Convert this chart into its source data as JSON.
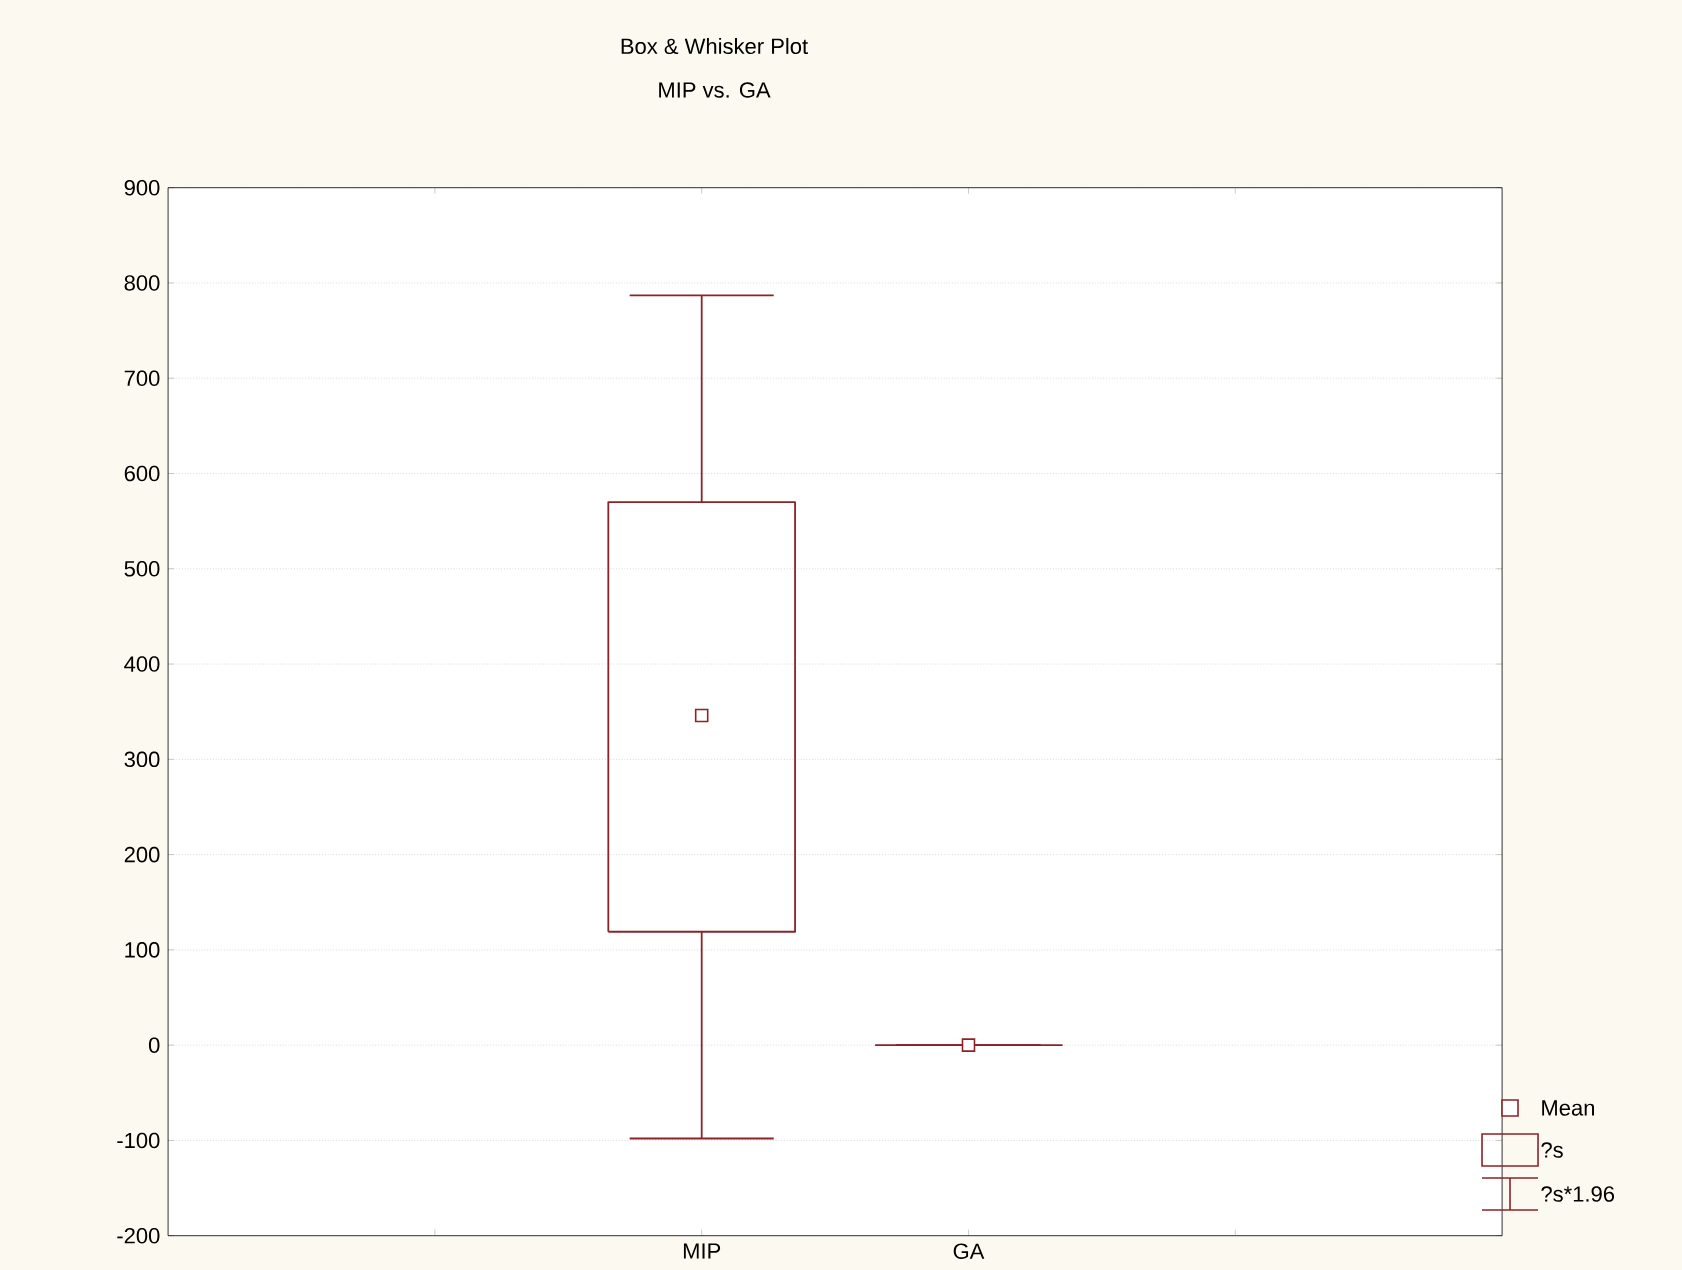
{
  "chart_data": {
    "type": "box",
    "title": "Box & Whisker Plot",
    "subtitle": "MIP      vs. GA",
    "categories": [
      "MIP",
      "GA"
    ],
    "boxes": [
      {
        "low": -98,
        "q1": 119,
        "q3": 570,
        "high": 787,
        "mean": 346
      },
      {
        "low": 0,
        "q1": 0,
        "q3": 0,
        "high": 0,
        "mean": 0
      }
    ],
    "color": "#8b2328",
    "ylim": [
      -200,
      900
    ],
    "yticks": [
      -200,
      -100,
      0,
      100,
      200,
      300,
      400,
      500,
      600,
      700,
      800,
      900
    ],
    "grid": "y",
    "annotations": [
      "Mean",
      "?s",
      "?s*1.96"
    ]
  }
}
